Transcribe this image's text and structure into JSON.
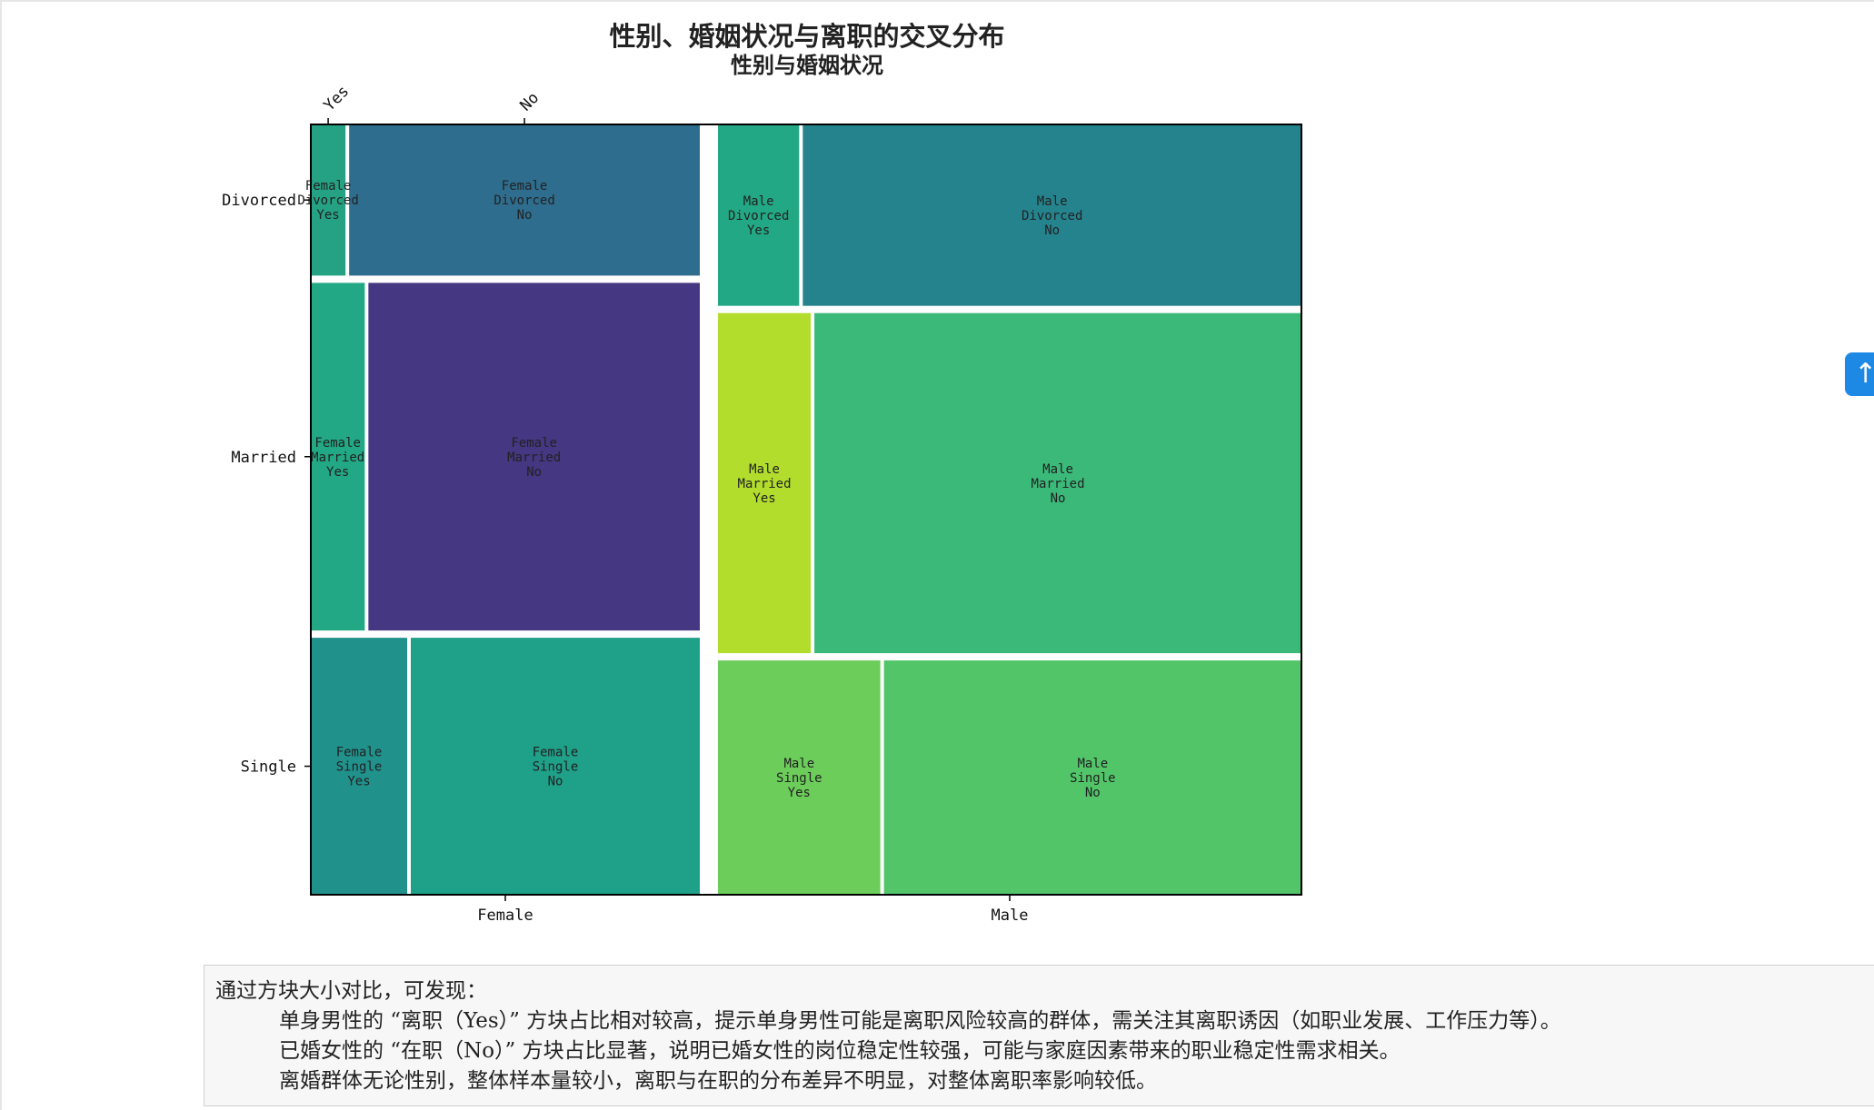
{
  "chart_data": {
    "type": "mosaic",
    "title": "性别、婚姻状况与离职的交叉分布",
    "subtitle": "性别与婚姻状况",
    "x_variable_levels": [
      "Female",
      "Male"
    ],
    "y_variable_levels": [
      "Divorced",
      "Married",
      "Single"
    ],
    "top_tick_labels": [
      "Yes",
      "No"
    ],
    "gender_fraction": {
      "Female": 0.4,
      "Male": 0.6
    },
    "marital_fraction_within_gender": {
      "Female": {
        "Divorced": 0.2,
        "Married": 0.46,
        "Single": 0.34
      },
      "Male": {
        "Divorced": 0.24,
        "Married": 0.45,
        "Single": 0.31
      }
    },
    "attrition_yes_fraction": {
      "Female": {
        "Divorced": 0.09,
        "Married": 0.14,
        "Single": 0.25
      },
      "Male": {
        "Divorced": 0.14,
        "Married": 0.16,
        "Single": 0.28
      }
    },
    "cells": [
      {
        "gender": "Female",
        "marital": "Divorced",
        "attrition": "Yes",
        "label": "Female\nDivorced\nYes",
        "color": "#25a284"
      },
      {
        "gender": "Female",
        "marital": "Divorced",
        "attrition": "No",
        "label": "Female\nDivorced\nNo",
        "color": "#2e6d8e"
      },
      {
        "gender": "Female",
        "marital": "Married",
        "attrition": "Yes",
        "label": "Female\nMarried\nYes",
        "color": "#22a884"
      },
      {
        "gender": "Female",
        "marital": "Married",
        "attrition": "No",
        "label": "Female\nMarried\nNo",
        "color": "#453781"
      },
      {
        "gender": "Female",
        "marital": "Single",
        "attrition": "Yes",
        "label": "Female\nSingle\nYes",
        "color": "#21918c"
      },
      {
        "gender": "Female",
        "marital": "Single",
        "attrition": "No",
        "label": "Female\nSingle\nNo",
        "color": "#1fa088"
      },
      {
        "gender": "Male",
        "marital": "Divorced",
        "attrition": "Yes",
        "label": "Male\nDivorced\nYes",
        "color": "#22a884"
      },
      {
        "gender": "Male",
        "marital": "Divorced",
        "attrition": "No",
        "label": "Male\nDivorced\nNo",
        "color": "#25838e"
      },
      {
        "gender": "Male",
        "marital": "Married",
        "attrition": "Yes",
        "label": "Male\nMarried\nYes",
        "color": "#b2dd2d"
      },
      {
        "gender": "Male",
        "marital": "Married",
        "attrition": "No",
        "label": "Male\nMarried\nNo",
        "color": "#3bb979"
      },
      {
        "gender": "Male",
        "marital": "Single",
        "attrition": "Yes",
        "label": "Male\nSingle\nYes",
        "color": "#6ccd5a"
      },
      {
        "gender": "Male",
        "marital": "Single",
        "attrition": "No",
        "label": "Male\nSingle\nNo",
        "color": "#52c569"
      }
    ]
  },
  "scroll_top_icon": "arrow-up-icon",
  "notes": {
    "intro": "通过方块大小对比，可发现：",
    "points": [
      "单身男性的 “离职（Yes）” 方块占比相对较高，提示单身男性可能是离职风险较高的群体，需关注其离职诱因（如职业发展、工作压力等）。",
      "已婚女性的 “在职（No）” 方块占比显著，说明已婚女性的岗位稳定性较强，可能与家庭因素带来的职业稳定性需求相关。",
      "离婚群体无论性别，整体样本量较小，离职与在职的分布差异不明显，对整体离职率影响较低。"
    ]
  }
}
